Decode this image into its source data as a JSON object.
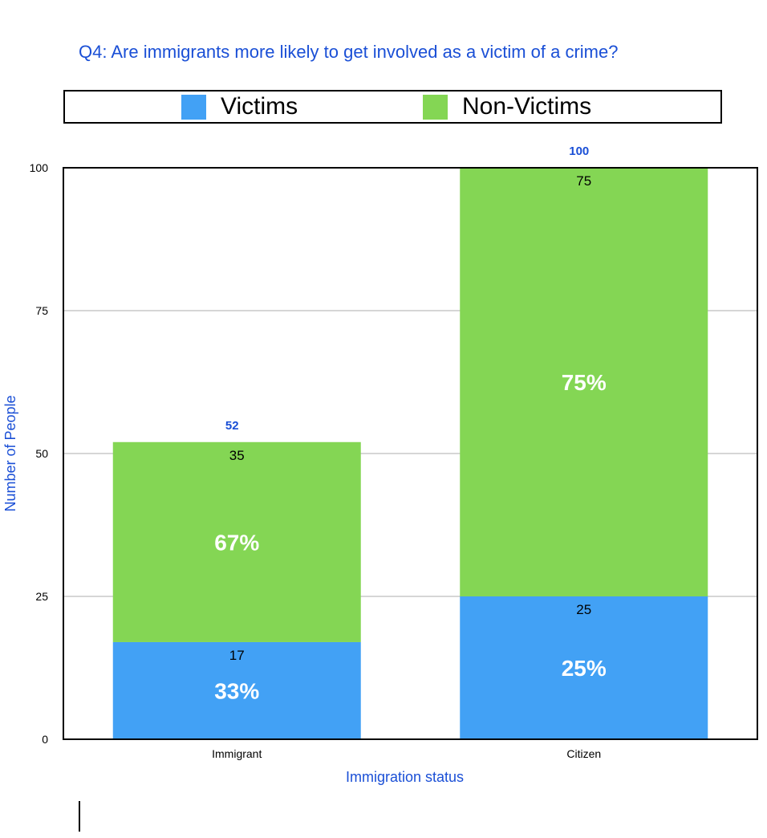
{
  "chart_data": {
    "type": "bar",
    "stacked": true,
    "title": "Q4: Are immigrants more likely to get involved as a victim of a crime?",
    "xlabel": "Immigration status",
    "ylabel": "Number of People",
    "categories": [
      "Immigrant",
      "Citizen"
    ],
    "ylim": [
      0,
      100
    ],
    "yticks": [
      "0",
      "25",
      "50",
      "75",
      "100"
    ],
    "grid": true,
    "legend_position": "top",
    "series": [
      {
        "name": "Victims",
        "color": "#42a1f5",
        "values": [
          17,
          25
        ],
        "value_labels": [
          "17",
          "25"
        ],
        "percent_labels": [
          "33%",
          "25%"
        ]
      },
      {
        "name": "Non-Victims",
        "color": "#84d654",
        "values": [
          35,
          75
        ],
        "value_labels": [
          "35",
          "75"
        ],
        "percent_labels": [
          "67%",
          "75%"
        ]
      }
    ],
    "totals": [
      "52",
      "100"
    ]
  }
}
